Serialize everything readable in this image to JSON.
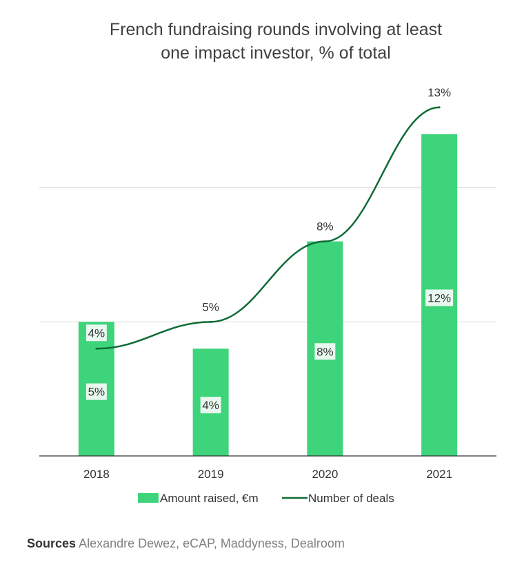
{
  "title_lines": [
    "French fundraising rounds involving at least",
    "one impact investor, % of total"
  ],
  "source": {
    "label": "Sources",
    "text": "Alexandre Dewez, eCAP, Maddyness, Dealroom"
  },
  "colors": {
    "bar": "#3dd47b",
    "line": "#0e6b36",
    "grid": "#d9d9d9",
    "axis": "#333333",
    "label_box": "#e8f8ee"
  },
  "chart_data": {
    "type": "bar",
    "categories": [
      "2018",
      "2019",
      "2020",
      "2021"
    ],
    "series": [
      {
        "name": "Amount raised, €m",
        "type": "bar",
        "values": [
          5,
          4,
          8,
          12
        ],
        "labels": [
          "5%",
          "4%",
          "8%",
          "12%"
        ]
      },
      {
        "name": "Number of deals",
        "type": "line",
        "values": [
          4,
          5,
          8,
          13
        ],
        "labels": [
          "4%",
          "5%",
          "8%",
          "13%"
        ]
      }
    ],
    "ylim": [
      0,
      15
    ],
    "grid": true,
    "legend": "bottom",
    "xlabel": "",
    "ylabel": ""
  }
}
